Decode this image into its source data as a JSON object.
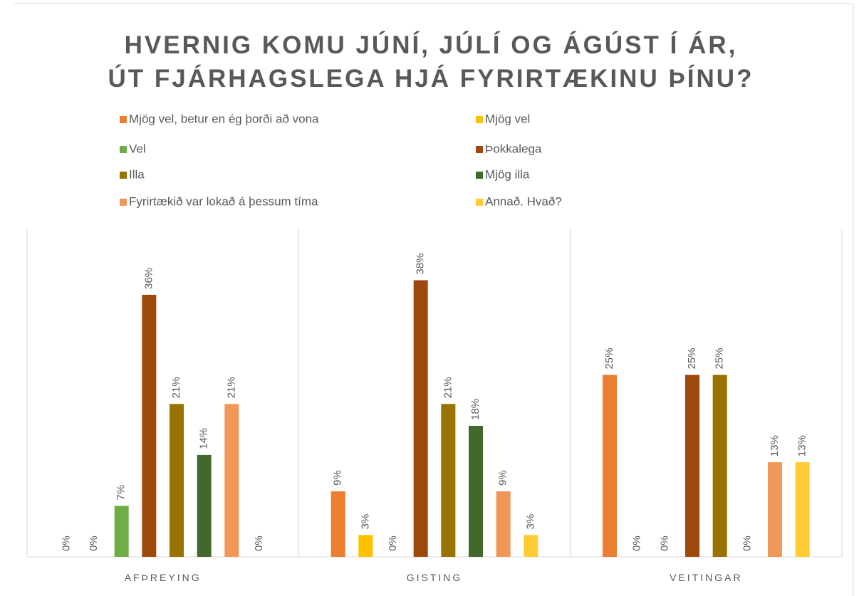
{
  "chart_data": {
    "type": "bar",
    "title": [
      "HVERNIG KOMU JÚNÍ, JÚLÍ OG ÁGÚST Í ÁR,",
      "ÚT FJÁRHAGSLEGA HJÁ FYRIRTÆKINU ÞÍNU?"
    ],
    "categories": [
      "AFÞREYING",
      "GISTING",
      "VEITINGAR"
    ],
    "ylim": [
      0,
      45
    ],
    "grid": false,
    "series": [
      {
        "name": "Mjög vel, betur en ég þorði að vona",
        "color": "#ed7d31",
        "values": [
          0,
          9,
          25
        ],
        "value_labels": [
          "0%",
          "9%",
          "25%"
        ]
      },
      {
        "name": "Mjög vel",
        "color": "#ffc000",
        "values": [
          0,
          3,
          0
        ],
        "value_labels": [
          "0%",
          "3%",
          "0%"
        ]
      },
      {
        "name": "Vel",
        "color": "#70ad47",
        "values": [
          7,
          0,
          0
        ],
        "value_labels": [
          "7%",
          "0%",
          "0%"
        ]
      },
      {
        "name": "Þokkalega",
        "color": "#9e480e",
        "values": [
          36,
          38,
          25
        ],
        "value_labels": [
          "36%",
          "38%",
          "25%"
        ]
      },
      {
        "name": "Illa",
        "color": "#997300",
        "values": [
          21,
          21,
          25
        ],
        "value_labels": [
          "21%",
          "21%",
          "25%"
        ]
      },
      {
        "name": "Mjög illa",
        "color": "#43682b",
        "values": [
          14,
          18,
          0
        ],
        "value_labels": [
          "14%",
          "18%",
          "0%"
        ]
      },
      {
        "name": "Fyrirtækið var lokað á þessum tíma",
        "color": "#f1975a",
        "values": [
          21,
          9,
          13
        ],
        "value_labels": [
          "21%",
          "9%",
          "13%"
        ]
      },
      {
        "name": "Annað. Hvað?",
        "color": "#ffcd33",
        "values": [
          0,
          3,
          13
        ],
        "value_labels": [
          "0%",
          "3%",
          "13%"
        ]
      }
    ]
  }
}
